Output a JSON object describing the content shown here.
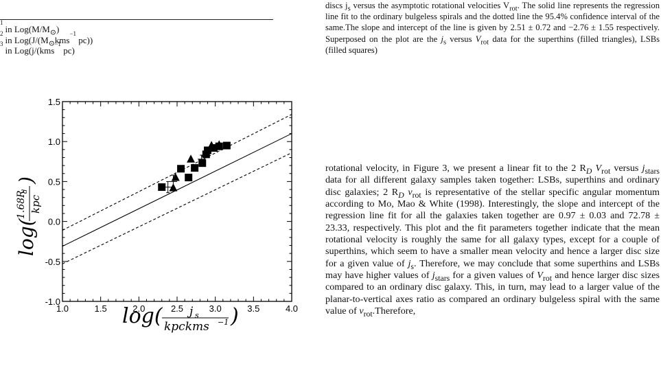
{
  "footnotes": [
    {
      "mark": "1",
      "text": "in Log(M/M",
      "sun": "⊙",
      "after": ")"
    },
    {
      "mark": "2",
      "text": "in Log(J/(M",
      "sun": "⊙",
      "mid": "kms",
      "exp": "−1",
      "after": " pc))"
    },
    {
      "mark": "3",
      "text": "in Log(j/(kms",
      "exp": "−1",
      "after": " pc)"
    }
  ],
  "caption": {
    "l1a": "discs j",
    "l1s": "s",
    "l1b": " versus the asymptotic rotational velocities V",
    "l1rot": "rot",
    "l1c": ". The solid line represents the regression line fit to the ordinary bulgeless spirals and the dotted line the 95.4% confidence interval of the same.The slope and intercept of the line is given by 2.51 ± 0.72 and −2.76 ± 1.55 respectively. Superposed on the plot are the ",
    "js": "j",
    "jss": "s",
    "mid": " versus ",
    "v": "V",
    "vs": "rot",
    "end": " data for the superthins (filled triangles), LSBs (filled squares)"
  },
  "body": {
    "p1": "rotational velocity, in Figure 3, we present a linear fit to the 2 R",
    "d1": "D",
    "p2": " ",
    "v1": "V",
    "v1s": "rot",
    "p3": " versus ",
    "j1": "j",
    "j1s": "stars",
    "p4": " data for all different galaxy samples taken together: LSBs, superthins and ordinary disc galaxies; 2 R",
    "d2": "D",
    "p5": " ",
    "v2": "v",
    "v2s": "rot",
    "p6": " is representative of the stellar specific angular momentum according to Mo, Mao & White (1998). Interestingly, the slope and intercept of the regression line fit for all the galaxies taken together are 0.97 ± 0.03 and 72.78 ± 23.33, respectively. This plot and the fit parameters together indicate that the mean rotational velocity is roughly the same for all galaxy types, except for a couple of superthins, which seem to have a smaller mean velocity and hence a larger disc size for a given value of ",
    "j2": "j",
    "j2s": "s",
    "p7": ". Therefore, we may conclude that some superthins and LSBs may have higher values of ",
    "j3": "j",
    "j3s": "stars",
    "p8": " for a given values of ",
    "v3": "V",
    "v3s": "rot",
    "p9": " and hence larger disc sizes compared to an ordinary disc galaxy. This, in turn, may lead to a larger value of the planar-to-vertical axes ratio as compared an ordinary bulgeless spiral with the same value of ",
    "v4": "v",
    "v4s": "rot",
    "p10": ".Therefore,"
  },
  "chart_data": {
    "type": "scatter",
    "xlim": [
      1.0,
      4.0
    ],
    "ylim": [
      -1.0,
      1.5
    ],
    "xticks": [
      "1.0",
      "1.5",
      "2.0",
      "2.5",
      "3.0",
      "3.5",
      "4.0"
    ],
    "yticks": [
      "-1.0",
      "-0.5",
      "0.0",
      "0.5",
      "1.0",
      "1.5"
    ],
    "xlabel": {
      "pre": "log(",
      "num": "j",
      "num_sub": "s",
      "den": "kpckms",
      "den_sup": "−1",
      "post": ")"
    },
    "ylabel": {
      "pre": "log(",
      "num": "1.68R",
      "num_sub": "d",
      "den": "kpc",
      "post": ")"
    },
    "fit": {
      "x": [
        1.0,
        4.0
      ],
      "y": [
        -0.31,
        1.1
      ]
    },
    "conf_upper": {
      "x": [
        1.0,
        4.0
      ],
      "y": [
        -0.11,
        1.34
      ]
    },
    "conf_lower": {
      "x": [
        1.0,
        4.0
      ],
      "y": [
        -0.53,
        0.86
      ]
    },
    "series": [
      {
        "marker": "square",
        "x": [
          2.3,
          2.55,
          2.65,
          2.73,
          2.83,
          2.88,
          2.9,
          2.98,
          3.05,
          3.15
        ],
        "y": [
          0.43,
          0.66,
          0.55,
          0.67,
          0.73,
          0.84,
          0.89,
          0.92,
          0.94,
          0.95
        ]
      },
      {
        "marker": "triangle",
        "x": [
          2.45,
          2.48,
          2.68,
          2.87,
          2.95,
          3.05
        ],
        "y": [
          0.42,
          0.55,
          0.78,
          0.85,
          0.95,
          0.96
        ]
      }
    ],
    "error_bars": [
      {
        "x": 2.38,
        "y": 0.43,
        "xerr": 0.07,
        "yerr": 0.07
      },
      {
        "x": 2.45,
        "y": 0.5,
        "xerr": 0.05,
        "yerr": 0.08
      },
      {
        "x": 2.82,
        "y": 0.78,
        "xerr": 0.05,
        "yerr": 0.05
      }
    ],
    "colors": {
      "ink": "#000000"
    }
  }
}
